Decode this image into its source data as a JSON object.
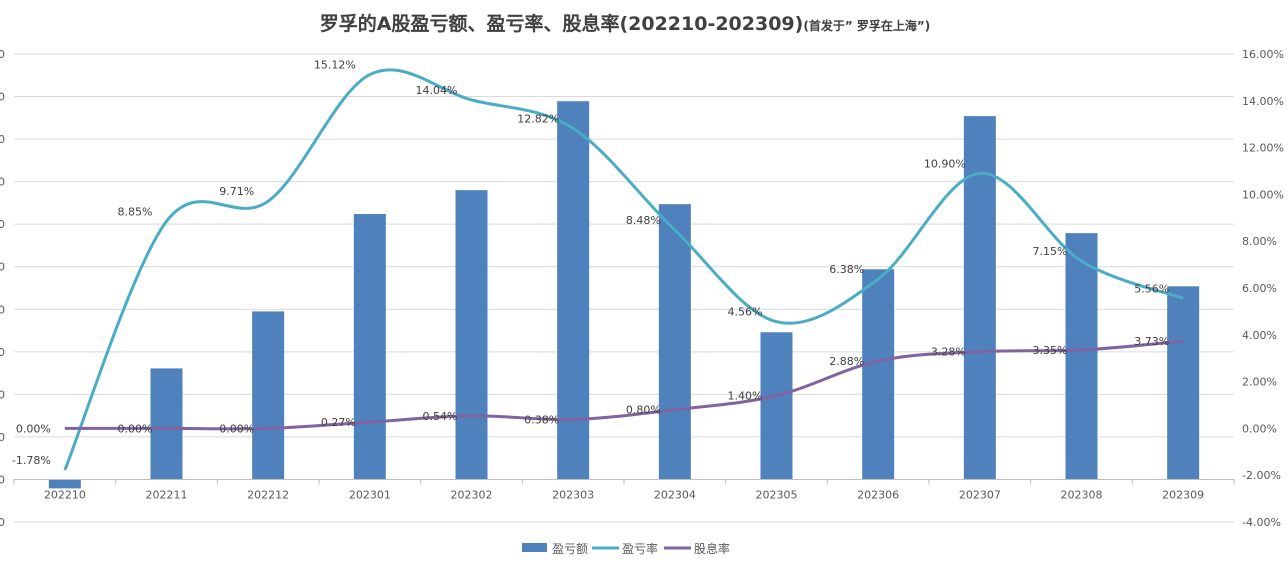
{
  "chart_data": {
    "type": "bar+line",
    "title": "罗孚的A股盈亏额、盈亏率、股息率(202210-202309)",
    "subtitle": "(首发于” 罗孚在上海”)",
    "categories": [
      "202210",
      "202211",
      "202212",
      "202301",
      "202302",
      "202303",
      "202304",
      "202305",
      "202306",
      "202307",
      "202308",
      "202309"
    ],
    "left_axis": {
      "tick_labels_visible": [
        "0",
        "0",
        "0",
        "0",
        "0",
        "0",
        "0",
        "0",
        "0",
        "0",
        "0",
        "0"
      ],
      "note_units": "gridline steps"
    },
    "right_axis": {
      "ticks": [
        "16.00%",
        "14.00%",
        "12.00%",
        "10.00%",
        "8.00%",
        "6.00%",
        "4.00%",
        "2.00%",
        "0.00%",
        "-2.00%",
        "-4.00%"
      ],
      "ylim": [
        -4,
        16
      ]
    },
    "grid": true,
    "legend_placement": "bottom",
    "series": [
      {
        "name": "盈亏额",
        "kind": "bar",
        "axis": "left",
        "color": "#4f81bd",
        "values": [
          -0.21,
          2.61,
          3.95,
          6.24,
          6.8,
          8.89,
          6.47,
          3.46,
          4.94,
          8.54,
          5.79,
          4.54
        ]
      },
      {
        "name": "盈亏率",
        "kind": "line",
        "axis": "right",
        "color": "#4bacc6",
        "values": [
          -1.78,
          8.85,
          9.71,
          15.12,
          14.04,
          12.82,
          8.48,
          4.56,
          6.38,
          10.9,
          7.15,
          5.56
        ],
        "labels": [
          "-1.78%",
          "8.85%",
          "9.71%",
          "15.12%",
          "14.04%",
          "12.82%",
          "8.48%",
          "4.56%",
          "6.38%",
          "10.90%",
          "7.15%",
          "5.56%"
        ]
      },
      {
        "name": "股息率",
        "kind": "line",
        "axis": "right",
        "color": "#8064a2",
        "values": [
          0.0,
          0.0,
          0.0,
          0.27,
          0.54,
          0.38,
          0.8,
          1.4,
          2.88,
          3.28,
          3.35,
          3.73
        ],
        "labels": [
          "0.00%",
          "0.00%",
          "0.00%",
          "0.27%",
          "0.54%",
          "0.38%",
          "0.80%",
          "1.40%",
          "2.88%",
          "3.28%",
          "3.35%",
          "3.73%"
        ]
      }
    ]
  }
}
